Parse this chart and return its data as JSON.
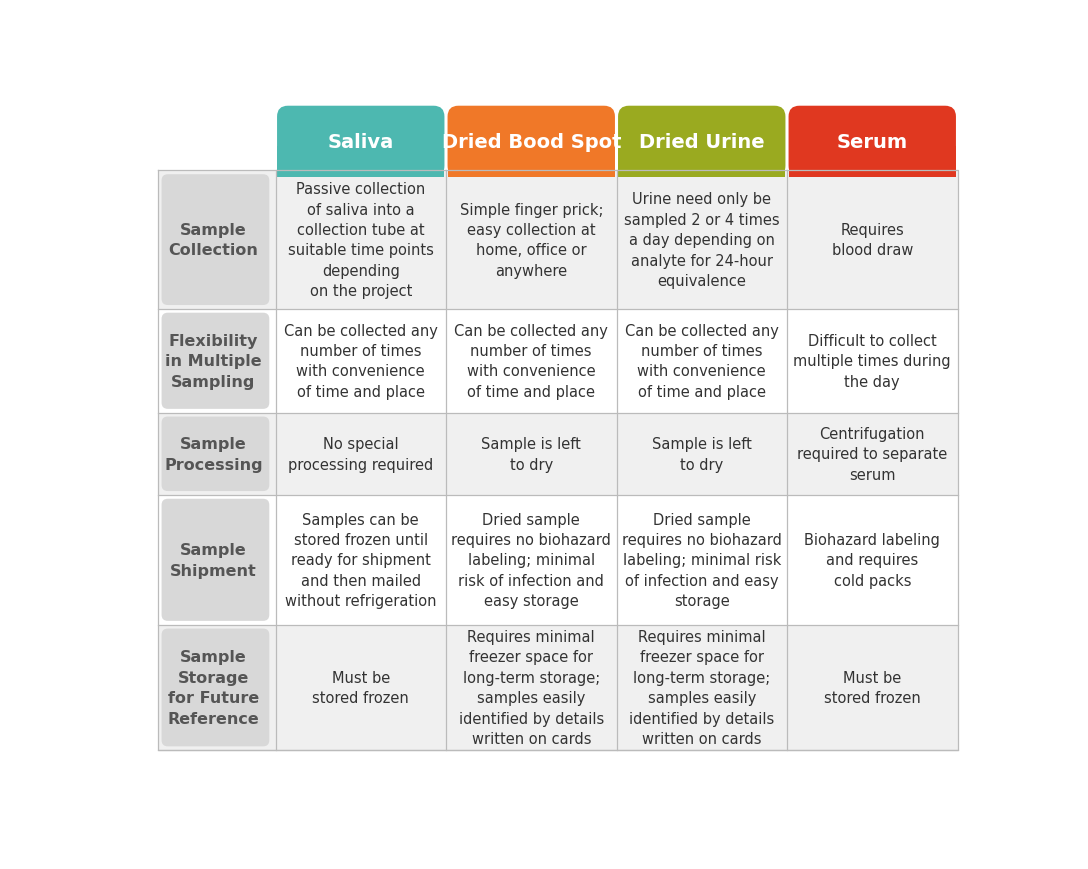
{
  "header_colors": [
    "#4db8b0",
    "#f07828",
    "#9aaa20",
    "#e03820"
  ],
  "header_text_color": "#ffffff",
  "row_label_bg": "#d8d8d8",
  "row_label_text_color": "#555555",
  "cell_bg_even": "#f0f0f0",
  "cell_bg_odd": "#ffffff",
  "grid_color": "#bbbbbb",
  "headers": [
    "Saliva",
    "Dried Bood Spot",
    "Dried Urine",
    "Serum"
  ],
  "row_labels": [
    "Sample\nCollection",
    "Flexibility\nin Multiple\nSampling",
    "Sample\nProcessing",
    "Sample\nShipment",
    "Sample\nStorage\nfor Future\nReference"
  ],
  "cells": [
    [
      "Passive collection\nof saliva into a\ncollection tube at\nsuitable time points\ndepending\non the project",
      "Simple finger prick;\neasy collection at\nhome, office or\nanywhere",
      "Urine need only be\nsampled 2 or 4 times\na day depending on\nanalyte for 24-hour\nequivalence",
      "Requires\nblood draw"
    ],
    [
      "Can be collected any\nnumber of times\nwith convenience\nof time and place",
      "Can be collected any\nnumber of times\nwith convenience\nof time and place",
      "Can be collected any\nnumber of times\nwith convenience\nof time and place",
      "Difficult to collect\nmultiple times during\nthe day"
    ],
    [
      "No special\nprocessing required",
      "Sample is left\nto dry",
      "Sample is left\nto dry",
      "Centrifugation\nrequired to separate\nserum"
    ],
    [
      "Samples can be\nstored frozen until\nready for shipment\nand then mailed\nwithout refrigeration",
      "Dried sample\nrequires no biohazard\nlabeling; minimal\nrisk of infection and\neasy storage",
      "Dried sample\nrequires no biohazard\nlabeling; minimal risk\nof infection and easy\nstorage",
      "Biohazard labeling\nand requires\ncold packs"
    ],
    [
      "Must be\nstored frozen",
      "Requires minimal\nfreezer space for\nlong-term storage;\nsamples easily\nidentified by details\nwritten on cards",
      "Requires minimal\nfreezer space for\nlong-term storage;\nsamples easily\nidentified by details\nwritten on cards",
      "Must be\nstored frozen"
    ]
  ],
  "background_color": "#ffffff"
}
